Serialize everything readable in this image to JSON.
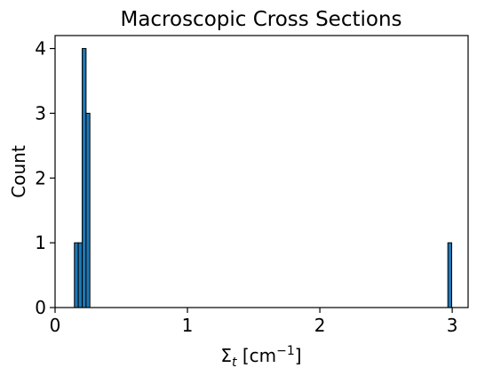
{
  "chart_data": {
    "type": "bar",
    "title": "Macroscopic Cross Sections",
    "xlabel_main": "Σ",
    "xlabel_sub": "t",
    "xlabel_unit_open": " [cm",
    "xlabel_unit_sup": "−1",
    "xlabel_unit_close": "]",
    "ylabel": "Count",
    "xlim": [
      0,
      3.12
    ],
    "ylim": [
      0,
      4.2
    ],
    "x_ticks": [
      0,
      1,
      2,
      3
    ],
    "x_tick_labels": [
      "0",
      "1",
      "2",
      "3"
    ],
    "y_ticks": [
      0,
      1,
      2,
      3,
      4
    ],
    "y_tick_labels": [
      "0",
      "1",
      "2",
      "3",
      "4"
    ],
    "bar_color": "#1f77b4",
    "edge_color": "#000000",
    "bins": [
      {
        "start": 0.146,
        "end": 0.175,
        "count": 1
      },
      {
        "start": 0.175,
        "end": 0.205,
        "count": 1
      },
      {
        "start": 0.205,
        "end": 0.234,
        "count": 4
      },
      {
        "start": 0.234,
        "end": 0.263,
        "count": 3
      },
      {
        "start": 2.967,
        "end": 2.996,
        "count": 1
      }
    ]
  }
}
